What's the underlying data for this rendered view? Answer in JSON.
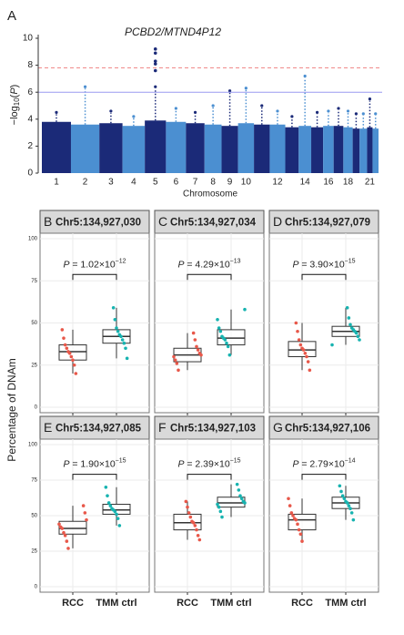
{
  "chart_data": [
    {
      "type": "scatter",
      "panel_label": "A",
      "title": "PCBD2/MTND4P12",
      "ylabel": [
        "−log",
        "10",
        "(",
        "P",
        ")"
      ],
      "xlabel": "Chromosome",
      "categories": [
        "1",
        "2",
        "3",
        "4",
        "5",
        "6",
        "7",
        "8",
        "9",
        "10",
        null,
        "12",
        null,
        "14",
        null,
        "16",
        null,
        "18",
        null,
        null,
        "21",
        null
      ],
      "bulk": [
        3.8,
        3.6,
        3.7,
        3.5,
        3.9,
        3.8,
        3.7,
        3.6,
        3.5,
        3.7,
        3.6,
        3.6,
        3.4,
        3.5,
        3.4,
        3.5,
        3.5,
        3.4,
        3.3,
        3.3,
        3.4,
        3.3
      ],
      "peak": [
        4.5,
        6.4,
        4.6,
        4.2,
        6.4,
        4.8,
        4.5,
        5.0,
        6.1,
        6.3,
        5.0,
        4.6,
        4.2,
        7.2,
        4.5,
        4.6,
        4.8,
        4.6,
        4.4,
        4.4,
        5.5,
        4.4
      ],
      "top_hits": [
        9.2,
        8.9,
        8.3,
        8.1,
        7.6
      ],
      "colors": [
        "#1b2a78",
        "#4b8fd1"
      ],
      "ylim": [
        0,
        10
      ],
      "yticks": [
        0,
        2,
        4,
        6,
        8,
        10
      ],
      "thresholds": [
        {
          "value": 7.8,
          "color": "#f08a8a",
          "dashed": true
        },
        {
          "value": 6,
          "color": "#9a9af0",
          "dashed": false
        }
      ]
    },
    {
      "type": "box",
      "letter": "B",
      "title": "Chr5:134,927,030",
      "p_text": [
        "P",
        " = 1.02×10",
        "−12"
      ],
      "ylabel": "Percentage of DNAm",
      "categories": [
        "RCC",
        "TMM ctrl"
      ],
      "colors": [
        "#e8584a",
        "#17b3b0"
      ],
      "ylim": [
        0,
        100
      ],
      "yticks": [
        0,
        25,
        50,
        75,
        100
      ],
      "boxes": [
        {
          "min": 20,
          "q1": 28,
          "median": 33,
          "q3": 37,
          "max": 46,
          "points": [
            20,
            25,
            28,
            30,
            32,
            33,
            35,
            37,
            41,
            46
          ]
        },
        {
          "min": 29,
          "q1": 38,
          "median": 42,
          "q3": 46,
          "max": 59,
          "points": [
            29,
            35,
            38,
            40,
            42,
            43,
            45,
            47,
            52,
            59
          ]
        }
      ]
    },
    {
      "type": "box",
      "letter": "C",
      "title": "Chr5:134,927,034",
      "p_text": [
        "P",
        " = 4.29×10",
        "−13"
      ],
      "categories": [
        "RCC",
        "TMM ctrl"
      ],
      "colors": [
        "#e8584a",
        "#17b3b0"
      ],
      "ylim": [
        0,
        100
      ],
      "yticks": [
        0,
        25,
        50,
        75,
        100
      ],
      "boxes": [
        {
          "min": 22,
          "q1": 27,
          "median": 31,
          "q3": 35,
          "max": 44,
          "points": [
            22,
            26,
            28,
            30,
            31,
            32,
            34,
            36,
            40,
            44
          ]
        },
        {
          "min": 31,
          "q1": 37,
          "median": 41,
          "q3": 46,
          "max": 58,
          "points": [
            31,
            36,
            38,
            40,
            41,
            42,
            45,
            47,
            52,
            58
          ]
        }
      ]
    },
    {
      "type": "box",
      "letter": "D",
      "title": "Chr5:134,927,079",
      "p_text": [
        "P",
        " = 3.90×10",
        "−15"
      ],
      "categories": [
        "RCC",
        "TMM ctrl"
      ],
      "colors": [
        "#e8584a",
        "#17b3b0"
      ],
      "ylim": [
        0,
        100
      ],
      "yticks": [
        0,
        25,
        50,
        75,
        100
      ],
      "boxes": [
        {
          "min": 22,
          "q1": 30,
          "median": 34,
          "q3": 39,
          "max": 50,
          "points": [
            22,
            27,
            30,
            32,
            34,
            35,
            37,
            40,
            45,
            50
          ]
        },
        {
          "min": 37,
          "q1": 42,
          "median": 45,
          "q3": 48,
          "max": 59,
          "points": [
            37,
            40,
            42,
            44,
            45,
            46,
            47,
            49,
            53,
            59
          ]
        }
      ]
    },
    {
      "type": "box",
      "letter": "E",
      "title": "Chr5:134,927,085",
      "p_text": [
        "P",
        " = 1.90×10",
        "−15"
      ],
      "categories": [
        "RCC",
        "TMM ctrl"
      ],
      "colors": [
        "#e8584a",
        "#17b3b0"
      ],
      "ylim": [
        0,
        100
      ],
      "yticks": [
        0,
        25,
        50,
        75,
        100
      ],
      "boxes": [
        {
          "min": 27,
          "q1": 37,
          "median": 41,
          "q3": 46,
          "max": 57,
          "points": [
            27,
            32,
            36,
            38,
            41,
            42,
            44,
            47,
            52,
            57
          ]
        },
        {
          "min": 43,
          "q1": 51,
          "median": 54,
          "q3": 58,
          "max": 70,
          "points": [
            43,
            48,
            51,
            53,
            54,
            55,
            57,
            59,
            64,
            70
          ]
        }
      ]
    },
    {
      "type": "box",
      "letter": "F",
      "title": "Chr5:134,927,103",
      "p_text": [
        "P",
        " = 2.39×10",
        "−15"
      ],
      "categories": [
        "RCC",
        "TMM ctrl"
      ],
      "colors": [
        "#e8584a",
        "#17b3b0"
      ],
      "ylim": [
        0,
        100
      ],
      "yticks": [
        0,
        25,
        50,
        75,
        100
      ],
      "boxes": [
        {
          "min": 33,
          "q1": 40,
          "median": 45,
          "q3": 51,
          "max": 60,
          "points": [
            33,
            36,
            40,
            43,
            45,
            46,
            49,
            52,
            56,
            60
          ]
        },
        {
          "min": 49,
          "q1": 56,
          "median": 59,
          "q3": 63,
          "max": 72,
          "points": [
            49,
            53,
            56,
            58,
            59,
            60,
            62,
            64,
            68,
            72
          ]
        }
      ]
    },
    {
      "type": "box",
      "letter": "G",
      "title": "Chr5:134,927,106",
      "p_text": [
        "P",
        " = 2.79×10",
        "−14"
      ],
      "categories": [
        "RCC",
        "TMM ctrl"
      ],
      "colors": [
        "#e8584a",
        "#17b3b0"
      ],
      "ylim": [
        0,
        100
      ],
      "yticks": [
        0,
        25,
        50,
        75,
        100
      ],
      "boxes": [
        {
          "min": 32,
          "q1": 40,
          "median": 47,
          "q3": 51,
          "max": 62,
          "points": [
            32,
            37,
            40,
            44,
            47,
            48,
            50,
            52,
            57,
            62
          ]
        },
        {
          "min": 47,
          "q1": 55,
          "median": 59,
          "q3": 63,
          "max": 71,
          "points": [
            47,
            52,
            55,
            57,
            59,
            60,
            62,
            64,
            67,
            71
          ]
        }
      ]
    }
  ]
}
